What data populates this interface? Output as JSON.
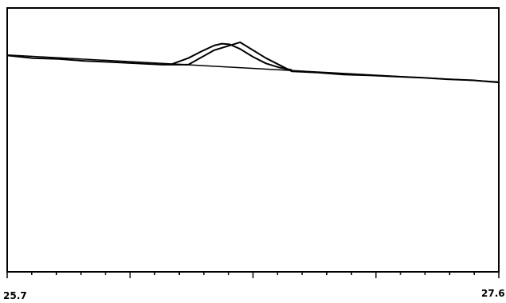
{
  "chart_data": {
    "type": "line",
    "title": "",
    "xlabel": "",
    "ylabel": "",
    "xlim": [
      25.7,
      27.6
    ],
    "ylim": [
      0,
      1
    ],
    "grid": false,
    "x_tick_labels": [
      "25.7",
      "27.6"
    ],
    "colors": {
      "line": "#000000",
      "frame": "#000000",
      "background": "#ffffff"
    },
    "series": [
      {
        "values_note_free": true,
        "x": [
          25.7,
          25.8,
          25.9,
          26.0,
          26.1,
          26.2,
          26.3,
          26.4,
          26.5,
          26.6,
          26.7,
          26.8,
          26.9,
          27.0,
          27.1,
          27.2,
          27.3,
          27.4,
          27.5,
          27.6
        ],
        "y": [
          0.82,
          0.81,
          0.807,
          0.799,
          0.795,
          0.79,
          0.785,
          0.785,
          0.84,
          0.87,
          0.81,
          0.76,
          0.755,
          0.748,
          0.745,
          0.74,
          0.736,
          0.73,
          0.726,
          0.718
        ]
      },
      {
        "x": [
          25.7,
          27.6
        ],
        "y": [
          0.822,
          0.72
        ]
      },
      {
        "x": [
          26.33,
          26.4,
          26.45,
          26.5,
          26.53,
          26.56,
          26.6,
          26.65,
          26.7,
          26.75,
          26.8
        ],
        "y": [
          0.785,
          0.81,
          0.835,
          0.858,
          0.865,
          0.862,
          0.845,
          0.815,
          0.79,
          0.775,
          0.765
        ]
      }
    ]
  }
}
